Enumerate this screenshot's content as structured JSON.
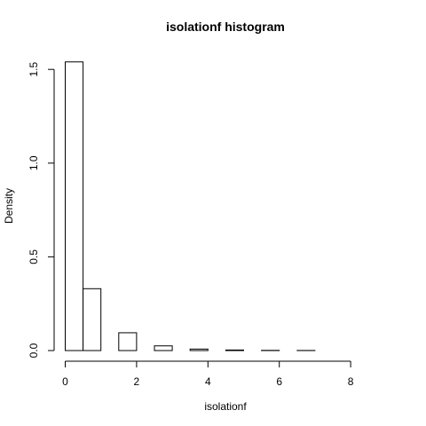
{
  "chart_data": {
    "type": "bar",
    "title": "isolationf  histogram",
    "xlabel": "isolationf",
    "ylabel": "Density",
    "xlim": [
      0,
      9
    ],
    "ylim": [
      0,
      1.6
    ],
    "x_ticks": [
      0,
      2,
      4,
      6,
      8
    ],
    "y_ticks": [
      0.0,
      0.5,
      1.0,
      1.5
    ],
    "x_tick_labels": [
      "0",
      "2",
      "4",
      "6",
      "8"
    ],
    "y_tick_labels": [
      "0.0",
      "0.5",
      "1.0",
      "1.5"
    ],
    "bin_edges": [
      0,
      0.5,
      1,
      1.5,
      2,
      2.5,
      3,
      3.5,
      4,
      4.5,
      5,
      5.5,
      6,
      6.5,
      7,
      7.5,
      8,
      8.5,
      9
    ],
    "values": [
      1.54,
      0.33,
      0.0,
      0.095,
      0.0,
      0.025,
      0.0,
      0.008,
      0.0,
      0.003,
      0.0,
      0.001,
      0.0,
      0.0005,
      0.0,
      0.0,
      0.0,
      0.0
    ],
    "grid": false,
    "legend": "none"
  }
}
